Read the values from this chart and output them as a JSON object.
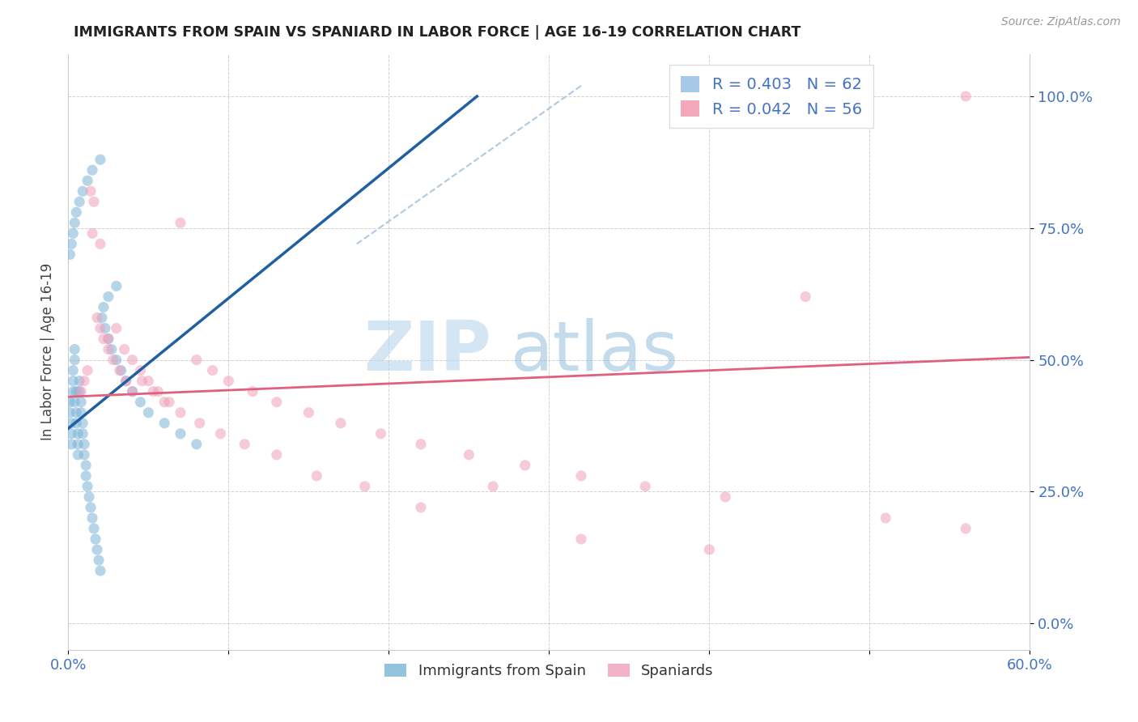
{
  "title": "IMMIGRANTS FROM SPAIN VS SPANIARD IN LABOR FORCE | AGE 16-19 CORRELATION CHART",
  "source_text": "Source: ZipAtlas.com",
  "ylabel": "In Labor Force | Age 16-19",
  "watermark_zip": "ZIP",
  "watermark_atlas": "atlas",
  "legend_entries": [
    {
      "label": "R = 0.403   N = 62",
      "color": "#a8c8e8"
    },
    {
      "label": "R = 0.042   N = 56",
      "color": "#f4a8bc"
    }
  ],
  "legend_labels_bottom": [
    "Immigrants from Spain",
    "Spaniards"
  ],
  "xlim": [
    0.0,
    0.6
  ],
  "ylim": [
    -0.05,
    1.08
  ],
  "ytick_labels": [
    "0.0%",
    "25.0%",
    "50.0%",
    "75.0%",
    "100.0%"
  ],
  "ytick_values": [
    0.0,
    0.25,
    0.5,
    0.75,
    1.0
  ],
  "xtick_labels": [
    "0.0%",
    "",
    "",
    "",
    "",
    "",
    "60.0%"
  ],
  "xtick_values": [
    0.0,
    0.1,
    0.2,
    0.3,
    0.4,
    0.5,
    0.6
  ],
  "blue_color": "#7ab4d8",
  "pink_color": "#f0a0b8",
  "blue_scatter_x": [
    0.001,
    0.001,
    0.002,
    0.002,
    0.002,
    0.003,
    0.003,
    0.003,
    0.004,
    0.004,
    0.004,
    0.005,
    0.005,
    0.005,
    0.006,
    0.006,
    0.006,
    0.007,
    0.007,
    0.008,
    0.008,
    0.009,
    0.009,
    0.01,
    0.01,
    0.011,
    0.011,
    0.012,
    0.013,
    0.014,
    0.015,
    0.016,
    0.017,
    0.018,
    0.019,
    0.02,
    0.021,
    0.022,
    0.023,
    0.025,
    0.027,
    0.03,
    0.033,
    0.036,
    0.04,
    0.045,
    0.05,
    0.06,
    0.07,
    0.08,
    0.001,
    0.002,
    0.003,
    0.004,
    0.005,
    0.007,
    0.009,
    0.012,
    0.015,
    0.02,
    0.025,
    0.03
  ],
  "blue_scatter_y": [
    0.42,
    0.4,
    0.38,
    0.36,
    0.34,
    0.44,
    0.46,
    0.48,
    0.5,
    0.52,
    0.42,
    0.44,
    0.4,
    0.38,
    0.36,
    0.34,
    0.32,
    0.46,
    0.44,
    0.42,
    0.4,
    0.38,
    0.36,
    0.34,
    0.32,
    0.3,
    0.28,
    0.26,
    0.24,
    0.22,
    0.2,
    0.18,
    0.16,
    0.14,
    0.12,
    0.1,
    0.58,
    0.6,
    0.56,
    0.54,
    0.52,
    0.5,
    0.48,
    0.46,
    0.44,
    0.42,
    0.4,
    0.38,
    0.36,
    0.34,
    0.7,
    0.72,
    0.74,
    0.76,
    0.78,
    0.8,
    0.82,
    0.84,
    0.86,
    0.88,
    0.62,
    0.64
  ],
  "pink_scatter_x": [
    0.008,
    0.01,
    0.012,
    0.014,
    0.016,
    0.018,
    0.02,
    0.022,
    0.025,
    0.028,
    0.032,
    0.036,
    0.04,
    0.045,
    0.05,
    0.056,
    0.063,
    0.07,
    0.08,
    0.09,
    0.1,
    0.115,
    0.13,
    0.15,
    0.17,
    0.195,
    0.22,
    0.25,
    0.285,
    0.32,
    0.36,
    0.41,
    0.46,
    0.51,
    0.56,
    0.015,
    0.02,
    0.025,
    0.03,
    0.035,
    0.04,
    0.046,
    0.053,
    0.06,
    0.07,
    0.082,
    0.095,
    0.11,
    0.13,
    0.155,
    0.185,
    0.22,
    0.265,
    0.32,
    0.4,
    0.56
  ],
  "pink_scatter_y": [
    0.44,
    0.46,
    0.48,
    0.82,
    0.8,
    0.58,
    0.56,
    0.54,
    0.52,
    0.5,
    0.48,
    0.46,
    0.44,
    0.48,
    0.46,
    0.44,
    0.42,
    0.76,
    0.5,
    0.48,
    0.46,
    0.44,
    0.42,
    0.4,
    0.38,
    0.36,
    0.34,
    0.32,
    0.3,
    0.28,
    0.26,
    0.24,
    0.62,
    0.2,
    0.18,
    0.74,
    0.72,
    0.54,
    0.56,
    0.52,
    0.5,
    0.46,
    0.44,
    0.42,
    0.4,
    0.38,
    0.36,
    0.34,
    0.32,
    0.28,
    0.26,
    0.22,
    0.26,
    0.16,
    0.14,
    1.0
  ],
  "blue_line_x": [
    0.0,
    0.255
  ],
  "blue_line_y": [
    0.37,
    1.0
  ],
  "pink_line_x": [
    0.0,
    0.6
  ],
  "pink_line_y": [
    0.43,
    0.505
  ],
  "gray_line_x": [
    0.18,
    0.32
  ],
  "gray_line_y": [
    0.72,
    1.02
  ],
  "title_color": "#222222",
  "axis_label_color": "#4472c4",
  "grid_color": "#cccccc",
  "background_color": "#ffffff"
}
